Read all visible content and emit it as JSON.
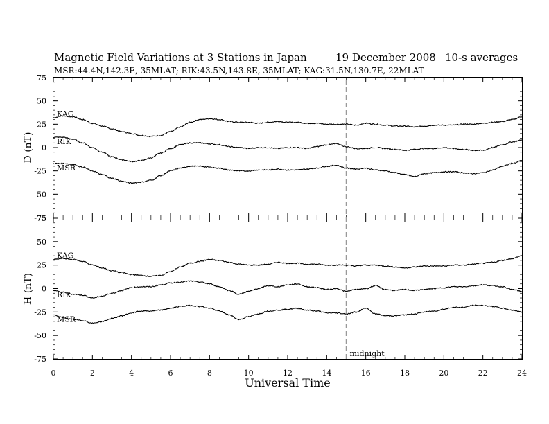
{
  "header": {
    "title_main": "Magnetic Field Variations at 3 Stations in Japan",
    "title_date": "19 December 2008",
    "title_avg": "10-s averages",
    "subtitle": "MSR:44.4N,142.3E, 35MLAT;   RIK:43.5N,143.8E, 35MLAT;   KAG:31.5N,130.7E, 22MLAT"
  },
  "colors": {
    "trace": "#000000",
    "midline": "#999999"
  },
  "chart_data": [
    {
      "type": "line",
      "panel": "top",
      "ylabel": "D (nT)",
      "ylim": [
        -75,
        75
      ],
      "yticks": [
        -75,
        -50,
        -25,
        0,
        25,
        50,
        75
      ],
      "xlim": [
        0,
        24
      ],
      "series": [
        {
          "name": "KAG",
          "x": [
            0,
            0.5,
            1,
            1.5,
            2,
            2.5,
            3,
            3.5,
            4,
            4.5,
            5,
            5.5,
            6,
            6.5,
            7,
            7.5,
            8,
            8.5,
            9,
            9.5,
            10,
            10.5,
            11,
            11.5,
            12,
            12.5,
            13,
            13.5,
            14,
            14.5,
            15,
            15.5,
            16,
            16.5,
            17,
            17.5,
            18,
            18.5,
            19,
            19.5,
            20,
            20.5,
            21,
            21.5,
            22,
            22.5,
            23,
            23.5,
            24
          ],
          "y": [
            32,
            34,
            33,
            30,
            26,
            23,
            20,
            17,
            15,
            13,
            12,
            13,
            17,
            22,
            27,
            30,
            31,
            30,
            28,
            27,
            27,
            26,
            27,
            28,
            27,
            27,
            26,
            26,
            25,
            25,
            25,
            24,
            26,
            25,
            24,
            23,
            23,
            22,
            23,
            24,
            24,
            24,
            25,
            25,
            26,
            27,
            28,
            30,
            33
          ]
        },
        {
          "name": "RIK",
          "x": [
            0,
            0.5,
            1,
            1.5,
            2,
            2.5,
            3,
            3.5,
            4,
            4.5,
            5,
            5.5,
            6,
            6.5,
            7,
            7.5,
            8,
            8.5,
            9,
            9.5,
            10,
            10.5,
            11,
            11.5,
            12,
            12.5,
            13,
            13.5,
            14,
            14.5,
            15,
            15.5,
            16,
            16.5,
            17,
            17.5,
            18,
            18.5,
            19,
            19.5,
            20,
            20.5,
            21,
            21.5,
            22,
            22.5,
            23,
            23.5,
            24
          ],
          "y": [
            11,
            11,
            9,
            5,
            0,
            -5,
            -10,
            -13,
            -15,
            -14,
            -11,
            -6,
            -1,
            3,
            5,
            5,
            4,
            3,
            1,
            0,
            -1,
            0,
            0,
            -1,
            0,
            0,
            -1,
            1,
            3,
            4,
            1,
            -1,
            -1,
            0,
            -1,
            -2,
            -3,
            -2,
            -1,
            -1,
            0,
            -1,
            -2,
            -3,
            -3,
            0,
            3,
            6,
            8
          ]
        },
        {
          "name": "MSR",
          "x": [
            0,
            0.5,
            1,
            1.5,
            2,
            2.5,
            3,
            3.5,
            4,
            4.5,
            5,
            5.5,
            6,
            6.5,
            7,
            7.5,
            8,
            8.5,
            9,
            9.5,
            10,
            10.5,
            11,
            11.5,
            12,
            12.5,
            13,
            13.5,
            14,
            14.5,
            15,
            15.5,
            16,
            16.5,
            17,
            17.5,
            18,
            18.5,
            19,
            19.5,
            20,
            20.5,
            21,
            21.5,
            22,
            22.5,
            23,
            23.5,
            24
          ],
          "y": [
            -17,
            -17,
            -18,
            -21,
            -25,
            -29,
            -33,
            -36,
            -38,
            -37,
            -35,
            -30,
            -25,
            -22,
            -20,
            -20,
            -21,
            -22,
            -24,
            -25,
            -25,
            -24,
            -24,
            -23,
            -24,
            -24,
            -23,
            -22,
            -20,
            -19,
            -22,
            -23,
            -22,
            -24,
            -25,
            -27,
            -29,
            -31,
            -28,
            -27,
            -26,
            -26,
            -27,
            -28,
            -27,
            -24,
            -20,
            -17,
            -14
          ]
        }
      ]
    },
    {
      "type": "line",
      "panel": "bottom",
      "ylabel": "H (nT)",
      "ylim": [
        -75,
        75
      ],
      "yticks": [
        -75,
        -50,
        -25,
        0,
        25,
        50,
        75
      ],
      "xlim": [
        0,
        24
      ],
      "xticks": [
        0,
        2,
        4,
        6,
        8,
        10,
        12,
        14,
        16,
        18,
        20,
        22,
        24
      ],
      "xlabel": "Universal Time",
      "series": [
        {
          "name": "KAG",
          "x": [
            0,
            0.5,
            1,
            1.5,
            2,
            2.5,
            3,
            3.5,
            4,
            4.5,
            5,
            5.5,
            6,
            6.5,
            7,
            7.5,
            8,
            8.5,
            9,
            9.5,
            10,
            10.5,
            11,
            11.5,
            12,
            12.5,
            13,
            13.5,
            14,
            14.5,
            15,
            15.5,
            16,
            16.5,
            17,
            17.5,
            18,
            18.5,
            19,
            19.5,
            20,
            20.5,
            21,
            21.5,
            22,
            22.5,
            23,
            23.5,
            24
          ],
          "y": [
            31,
            32,
            31,
            29,
            25,
            22,
            19,
            17,
            15,
            14,
            13,
            14,
            18,
            23,
            27,
            29,
            31,
            30,
            28,
            26,
            25,
            25,
            26,
            28,
            27,
            27,
            26,
            26,
            25,
            25,
            25,
            24,
            25,
            25,
            24,
            23,
            22,
            23,
            24,
            24,
            24,
            25,
            25,
            26,
            27,
            28,
            30,
            32,
            35
          ]
        },
        {
          "name": "RIK",
          "x": [
            0,
            0.5,
            1,
            1.5,
            2,
            2.5,
            3,
            3.5,
            4,
            4.5,
            5,
            5.5,
            6,
            6.5,
            7,
            7.5,
            8,
            8.5,
            9,
            9.5,
            10,
            10.5,
            11,
            11.5,
            12,
            12.5,
            13,
            13.5,
            14,
            14.5,
            15,
            15.5,
            16,
            16.5,
            17,
            17.5,
            18,
            18.5,
            19,
            19.5,
            20,
            20.5,
            21,
            21.5,
            22,
            22.5,
            23,
            23.5,
            24
          ],
          "y": [
            -2,
            -4,
            -6,
            -7,
            -10,
            -8,
            -5,
            -2,
            1,
            2,
            2,
            4,
            6,
            7,
            8,
            7,
            5,
            2,
            -2,
            -6,
            -3,
            0,
            3,
            2,
            4,
            5,
            2,
            1,
            -1,
            0,
            -3,
            -1,
            0,
            3,
            -1,
            -2,
            -1,
            -2,
            -1,
            0,
            1,
            2,
            2,
            3,
            4,
            3,
            2,
            -1,
            -3
          ]
        },
        {
          "name": "MSR",
          "x": [
            0,
            0.5,
            1,
            1.5,
            2,
            2.5,
            3,
            3.5,
            4,
            4.5,
            5,
            5.5,
            6,
            6.5,
            7,
            7.5,
            8,
            8.5,
            9,
            9.5,
            10,
            10.5,
            11,
            11.5,
            12,
            12.5,
            13,
            13.5,
            14,
            14.5,
            15,
            15.5,
            16,
            16.5,
            17,
            17.5,
            18,
            18.5,
            19,
            19.5,
            20,
            20.5,
            21,
            21.5,
            22,
            22.5,
            23,
            23.5,
            24
          ],
          "y": [
            -28,
            -31,
            -33,
            -34,
            -37,
            -35,
            -32,
            -29,
            -26,
            -24,
            -24,
            -23,
            -21,
            -19,
            -18,
            -19,
            -21,
            -24,
            -28,
            -33,
            -30,
            -27,
            -24,
            -23,
            -22,
            -21,
            -23,
            -24,
            -26,
            -26,
            -27,
            -25,
            -21,
            -27,
            -29,
            -29,
            -28,
            -27,
            -25,
            -24,
            -22,
            -20,
            -20,
            -18,
            -18,
            -19,
            -21,
            -23,
            -25
          ]
        }
      ]
    }
  ],
  "midnight": {
    "x": 15,
    "label": "midnight"
  }
}
